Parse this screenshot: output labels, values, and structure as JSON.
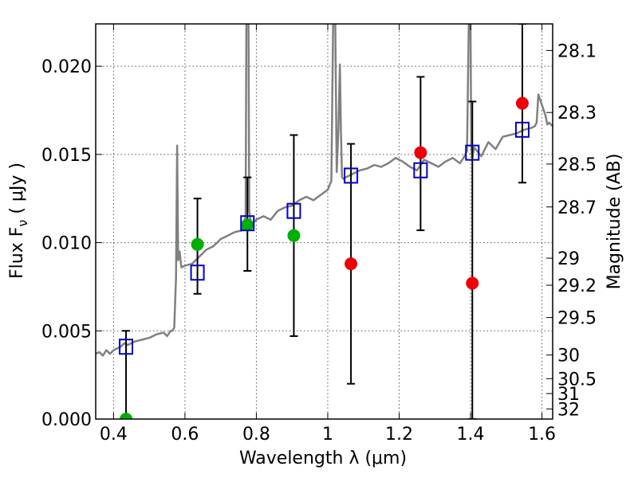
{
  "chart_data": {
    "type": "scatter",
    "xlabel": "Wavelength  λ (μm)",
    "ylabel": "Flux  F",
    "ylabel_sub": "ν",
    "ylabel_unit": " ( μJy )",
    "y2label": "Magnitude (AB)",
    "xlim": [
      0.35,
      1.63
    ],
    "ylim": [
      0.0,
      0.0224
    ],
    "grid": true,
    "x_ticks": [
      0.4,
      0.6,
      0.8,
      1.0,
      1.2,
      1.4,
      1.6
    ],
    "x_tick_labels": [
      "0.4",
      "0.6",
      "0.8",
      "1",
      "1.2",
      "1.4",
      "1.6"
    ],
    "y_ticks": [
      0.0,
      0.005,
      0.01,
      0.015,
      0.02
    ],
    "y_tick_labels": [
      "0.000",
      "0.005",
      "0.010",
      "0.015",
      "0.020"
    ],
    "y2_ticks": [
      28.1,
      28.3,
      28.5,
      28.7,
      29,
      29.2,
      29.5,
      30,
      30.5,
      31,
      32
    ],
    "y2_tick_labels": [
      "28.1",
      "28.3",
      "28.5",
      "28.7",
      "29",
      "29.2",
      "29.5",
      "30",
      "30.5",
      "31",
      "32"
    ],
    "colors": {
      "spectrum": "#808080",
      "model": "#0000cc",
      "green": "#00b000",
      "red": "#ee0000",
      "errorbar": "#000000",
      "grid": "#555555"
    },
    "series": [
      {
        "marker": "line",
        "x": [
          0.35,
          0.36,
          0.37,
          0.38,
          0.39,
          0.4,
          0.41,
          0.42,
          0.43,
          0.44,
          0.46,
          0.48,
          0.5,
          0.52,
          0.54,
          0.55,
          0.56,
          0.565,
          0.57,
          0.575,
          0.578,
          0.581,
          0.585,
          0.59,
          0.6,
          0.62,
          0.64,
          0.66,
          0.68,
          0.7,
          0.72,
          0.74,
          0.76,
          0.77,
          0.772,
          0.775,
          0.778,
          0.78,
          0.785,
          0.79,
          0.8,
          0.82,
          0.84,
          0.86,
          0.88,
          0.9,
          0.92,
          0.94,
          0.96,
          0.98,
          1.0,
          1.01,
          1.015,
          1.018,
          1.021,
          1.025,
          1.03,
          1.034,
          1.037,
          1.04,
          1.045,
          1.05,
          1.07,
          1.09,
          1.11,
          1.13,
          1.15,
          1.17,
          1.19,
          1.21,
          1.23,
          1.25,
          1.27,
          1.29,
          1.31,
          1.33,
          1.35,
          1.37,
          1.38,
          1.39,
          1.395,
          1.398,
          1.4,
          1.402,
          1.405,
          1.41,
          1.43,
          1.45,
          1.47,
          1.49,
          1.51,
          1.53,
          1.55,
          1.57,
          1.58,
          1.585,
          1.59,
          1.6,
          1.61,
          1.615,
          1.62,
          1.63
        ],
        "y": [
          0.0037,
          0.0038,
          0.0036,
          0.0039,
          0.0037,
          0.0039,
          0.004,
          0.0041,
          0.0043,
          0.0042,
          0.0044,
          0.0045,
          0.0046,
          0.0048,
          0.0049,
          0.0047,
          0.005,
          0.005,
          0.0052,
          0.008,
          0.0155,
          0.009,
          0.0095,
          0.0086,
          0.0087,
          0.0088,
          0.0092,
          0.0096,
          0.0098,
          0.0102,
          0.0104,
          0.0106,
          0.0107,
          0.0115,
          0.0224,
          0.0224,
          0.0224,
          0.0118,
          0.011,
          0.0111,
          0.0113,
          0.0115,
          0.0113,
          0.0118,
          0.012,
          0.0121,
          0.0124,
          0.0126,
          0.0124,
          0.0127,
          0.013,
          0.0135,
          0.0224,
          0.0224,
          0.0224,
          0.014,
          0.0165,
          0.0201,
          0.0163,
          0.0137,
          0.0136,
          0.0137,
          0.0139,
          0.0141,
          0.0142,
          0.0144,
          0.0143,
          0.0145,
          0.0148,
          0.0146,
          0.0143,
          0.0141,
          0.0147,
          0.0145,
          0.0143,
          0.0146,
          0.0148,
          0.0145,
          0.0148,
          0.0152,
          0.0224,
          0.0224,
          0.0224,
          0.0155,
          0.0148,
          0.0154,
          0.0149,
          0.0157,
          0.0153,
          0.016,
          0.0161,
          0.0162,
          0.0164,
          0.0165,
          0.0166,
          0.0168,
          0.0184,
          0.0178,
          0.0172,
          0.0167,
          0.0168,
          0.0166
        ]
      },
      {
        "marker": "square",
        "x": [
          0.435,
          0.635,
          0.775,
          0.905,
          1.065,
          1.26,
          1.405,
          1.545
        ],
        "y": [
          0.0041,
          0.0083,
          0.0111,
          0.0118,
          0.0138,
          0.0141,
          0.0151,
          0.0164
        ]
      },
      {
        "marker": "circle-green",
        "x": [
          0.435,
          0.635,
          0.775,
          0.905
        ],
        "y": [
          0.0,
          0.0099,
          0.011,
          0.0104
        ]
      },
      {
        "marker": "circle-red",
        "x": [
          1.065,
          1.26,
          1.405,
          1.545
        ],
        "y": [
          0.0088,
          0.0151,
          0.0077,
          0.0179
        ]
      },
      {
        "marker": "errorbar",
        "x": [
          0.435,
          0.635,
          0.775,
          0.905,
          1.065,
          1.26,
          1.405,
          1.545
        ],
        "y_low": [
          0.0,
          0.0071,
          0.0084,
          0.0047,
          0.002,
          0.0107,
          0.0,
          0.0134
        ],
        "y_high": [
          0.005,
          0.0125,
          0.0137,
          0.0161,
          0.0156,
          0.0194,
          0.018,
          0.0224
        ]
      }
    ]
  }
}
